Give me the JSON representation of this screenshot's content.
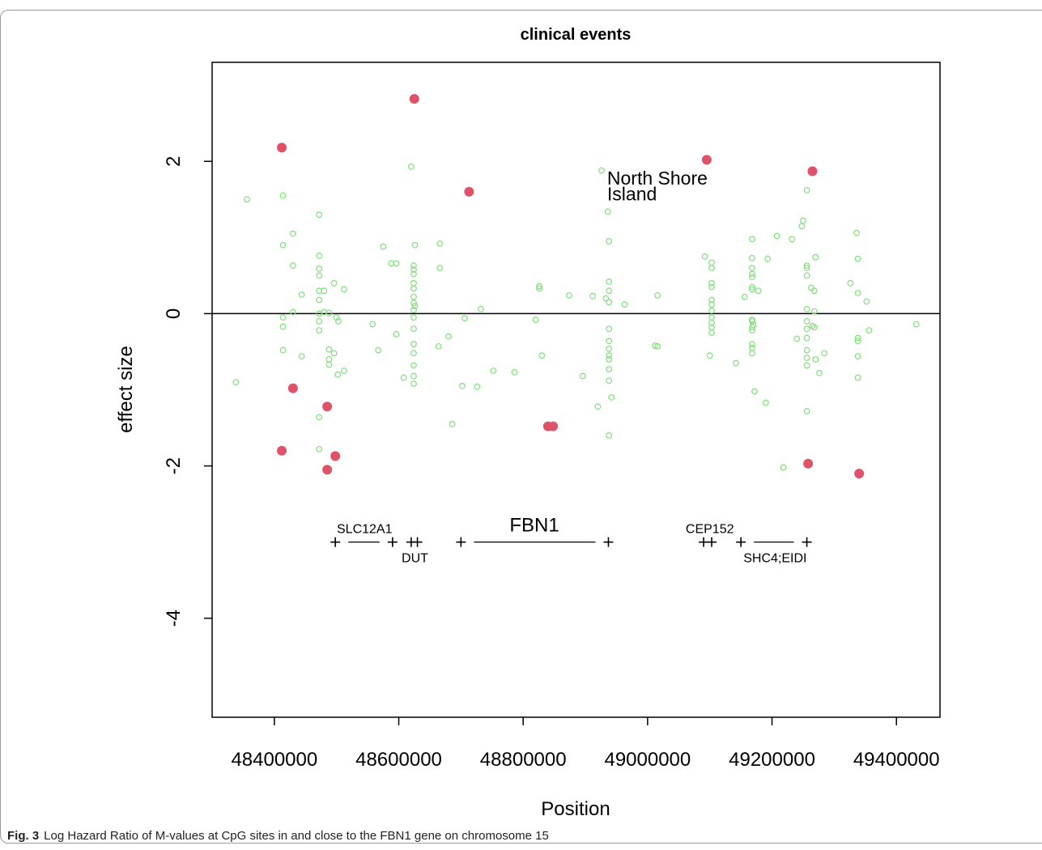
{
  "caption": {
    "label": "Fig. 3",
    "text": "Log Hazard Ratio of M-values at CpG sites in and close to the FBN1 gene on chromosome 15"
  },
  "chart_data": {
    "type": "scatter",
    "title": "clinical events",
    "xlabel": "Position",
    "ylabel": "effect size",
    "xlim": [
      48300000,
      49470000
    ],
    "ylim": [
      -5.3,
      3.3
    ],
    "xticks": [
      48400000,
      48600000,
      48800000,
      49000000,
      49200000,
      49400000
    ],
    "xtick_labels": [
      "48400000",
      "48600000",
      "48800000",
      "49000000",
      "49200000",
      "49400000"
    ],
    "yticks": [
      -4,
      -2,
      0,
      2
    ],
    "ytick_labels": [
      "-4",
      "-2",
      "0",
      "2"
    ],
    "reference_line_y": 0,
    "colors": {
      "highlight": "#df5368",
      "other": "#7fe07a",
      "axis": "#000000"
    },
    "annotations": [
      {
        "text": "North Shore",
        "x": 48935000,
        "y": 1.78
      },
      {
        "text": "Island",
        "x": 48935000,
        "y": 1.57
      }
    ],
    "genes": [
      {
        "name": "SLC12A1",
        "label_x": 48545000,
        "label_y": -2.82,
        "ticks": [
          48498000,
          48590000
        ]
      },
      {
        "name": "DUT",
        "label_x": 48626000,
        "label_y": -3.2,
        "ticks": [
          48620000,
          48630000
        ]
      },
      {
        "name": "FBN1",
        "label_x": 48818000,
        "label_y": -2.82,
        "ticks": [
          48700000,
          48937000
        ]
      },
      {
        "name": "CEP152",
        "label_x": 49100000,
        "label_y": -2.82,
        "ticks": [
          49090000,
          49103000
        ]
      },
      {
        "name": "SHC4;EIDI",
        "label_x": 49205000,
        "label_y": -3.2,
        "ticks": [
          49150000,
          49256000
        ]
      }
    ],
    "series": [
      {
        "name": "",
        "style": "filled",
        "points": [
          [
            48412000,
            2.18
          ],
          [
            48430000,
            -0.98
          ],
          [
            48412000,
            -1.8
          ],
          [
            48485000,
            -1.22
          ],
          [
            48485000,
            -2.05
          ],
          [
            48498000,
            -1.87
          ],
          [
            48625000,
            2.82
          ],
          [
            48713000,
            1.6
          ],
          [
            48840000,
            -1.48
          ],
          [
            48848000,
            -1.48
          ],
          [
            49095000,
            2.02
          ],
          [
            49265000,
            1.87
          ],
          [
            49258000,
            -1.97
          ],
          [
            49340000,
            -2.1
          ]
        ]
      },
      {
        "name": "",
        "style": "open",
        "points": [
          [
            48338000,
            -0.9
          ],
          [
            48356000,
            1.5
          ],
          [
            48414000,
            1.55
          ],
          [
            48414000,
            0.9
          ],
          [
            48414000,
            -0.05
          ],
          [
            48414000,
            -0.17
          ],
          [
            48414000,
            -0.48
          ],
          [
            48430000,
            1.05
          ],
          [
            48430000,
            0.63
          ],
          [
            48430000,
            0.02
          ],
          [
            48444000,
            0.25
          ],
          [
            48444000,
            -0.56
          ],
          [
            48472000,
            1.3
          ],
          [
            48472000,
            0.76
          ],
          [
            48472000,
            0.59
          ],
          [
            48472000,
            0.5
          ],
          [
            48472000,
            0.3
          ],
          [
            48472000,
            0.18
          ],
          [
            48472000,
            0.0
          ],
          [
            48472000,
            -0.1
          ],
          [
            48472000,
            -0.22
          ],
          [
            48472000,
            -1.36
          ],
          [
            48472000,
            -1.78
          ],
          [
            48480000,
            0.3
          ],
          [
            48480000,
            0.02
          ],
          [
            48488000,
            0.01
          ],
          [
            48488000,
            -0.47
          ],
          [
            48488000,
            -0.6
          ],
          [
            48488000,
            -0.67
          ],
          [
            48496000,
            0.4
          ],
          [
            48496000,
            -0.52
          ],
          [
            48500000,
            -0.05
          ],
          [
            48502000,
            -0.8
          ],
          [
            48503000,
            -0.1
          ],
          [
            48512000,
            0.32
          ],
          [
            48512000,
            -0.75
          ],
          [
            48558000,
            -0.14
          ],
          [
            48567000,
            -0.48
          ],
          [
            48575000,
            0.88
          ],
          [
            48588000,
            0.66
          ],
          [
            48596000,
            0.66
          ],
          [
            48596000,
            -0.27
          ],
          [
            48608000,
            -0.84
          ],
          [
            48620000,
            1.93
          ],
          [
            48624000,
            0.63
          ],
          [
            48624000,
            0.58
          ],
          [
            48624000,
            0.52
          ],
          [
            48624000,
            0.4
          ],
          [
            48624000,
            0.33
          ],
          [
            48624000,
            0.22
          ],
          [
            48624000,
            0.14
          ],
          [
            48624000,
            0.05
          ],
          [
            48624000,
            -0.05
          ],
          [
            48624000,
            -0.2
          ],
          [
            48624000,
            -0.4
          ],
          [
            48624000,
            -0.52
          ],
          [
            48624000,
            -0.68
          ],
          [
            48624000,
            -0.82
          ],
          [
            48624000,
            -0.92
          ],
          [
            48626000,
            0.9
          ],
          [
            48626000,
            0.1
          ],
          [
            48664000,
            -0.43
          ],
          [
            48666000,
            0.92
          ],
          [
            48666000,
            0.6
          ],
          [
            48680000,
            -0.3
          ],
          [
            48686000,
            -1.45
          ],
          [
            48702000,
            -0.95
          ],
          [
            48706000,
            -0.06
          ],
          [
            48726000,
            -0.96
          ],
          [
            48732000,
            0.06
          ],
          [
            48752000,
            -0.75
          ],
          [
            48786000,
            -0.77
          ],
          [
            48820000,
            -0.08
          ],
          [
            48826000,
            0.36
          ],
          [
            48826000,
            0.33
          ],
          [
            48830000,
            -0.55
          ],
          [
            48874000,
            0.24
          ],
          [
            48896000,
            -0.82
          ],
          [
            48912000,
            0.23
          ],
          [
            48920000,
            -1.22
          ],
          [
            48926000,
            1.88
          ],
          [
            48933000,
            0.2
          ],
          [
            48936000,
            1.34
          ],
          [
            48938000,
            0.95
          ],
          [
            48938000,
            0.42
          ],
          [
            48938000,
            0.3
          ],
          [
            48938000,
            0.15
          ],
          [
            48938000,
            -0.2
          ],
          [
            48938000,
            -0.36
          ],
          [
            48938000,
            -0.46
          ],
          [
            48938000,
            -0.55
          ],
          [
            48938000,
            -0.6
          ],
          [
            48938000,
            -0.73
          ],
          [
            48938000,
            -0.88
          ],
          [
            48938000,
            -1.6
          ],
          [
            48942000,
            -1.1
          ],
          [
            48963000,
            0.12
          ],
          [
            49012000,
            -0.42
          ],
          [
            49016000,
            -0.43
          ],
          [
            49016000,
            0.24
          ],
          [
            49092000,
            0.75
          ],
          [
            49100000,
            -0.55
          ],
          [
            49103000,
            0.67
          ],
          [
            49103000,
            0.6
          ],
          [
            49103000,
            0.4
          ],
          [
            49103000,
            0.35
          ],
          [
            49103000,
            0.18
          ],
          [
            49103000,
            0.12
          ],
          [
            49103000,
            0.04
          ],
          [
            49103000,
            -0.05
          ],
          [
            49103000,
            -0.12
          ],
          [
            49103000,
            -0.18
          ],
          [
            49103000,
            -0.25
          ],
          [
            49142000,
            -0.65
          ],
          [
            49156000,
            0.22
          ],
          [
            49168000,
            0.98
          ],
          [
            49168000,
            0.73
          ],
          [
            49168000,
            0.6
          ],
          [
            49168000,
            0.52
          ],
          [
            49168000,
            0.48
          ],
          [
            49168000,
            0.35
          ],
          [
            49168000,
            0.32
          ],
          [
            49168000,
            -0.08
          ],
          [
            49168000,
            -0.1
          ],
          [
            49168000,
            -0.18
          ],
          [
            49168000,
            -0.22
          ],
          [
            49168000,
            -0.4
          ],
          [
            49168000,
            -0.45
          ],
          [
            49168000,
            -0.52
          ],
          [
            49170000,
            -0.15
          ],
          [
            49172000,
            -1.02
          ],
          [
            49178000,
            0.3
          ],
          [
            49190000,
            -1.17
          ],
          [
            49193000,
            0.72
          ],
          [
            49208000,
            1.02
          ],
          [
            49218000,
            -2.02
          ],
          [
            49232000,
            0.98
          ],
          [
            49240000,
            -0.33
          ],
          [
            49248000,
            1.15
          ],
          [
            49250000,
            1.22
          ],
          [
            49256000,
            1.62
          ],
          [
            49256000,
            0.63
          ],
          [
            49256000,
            0.6
          ],
          [
            49256000,
            0.5
          ],
          [
            49256000,
            0.06
          ],
          [
            49256000,
            -0.1
          ],
          [
            49256000,
            -0.2
          ],
          [
            49256000,
            -0.32
          ],
          [
            49256000,
            -0.48
          ],
          [
            49256000,
            -0.58
          ],
          [
            49256000,
            -0.68
          ],
          [
            49256000,
            -1.28
          ],
          [
            49263000,
            0.34
          ],
          [
            49265000,
            -0.16
          ],
          [
            49268000,
            0.3
          ],
          [
            49268000,
            0.03
          ],
          [
            49268000,
            -0.18
          ],
          [
            49270000,
            0.74
          ],
          [
            49270000,
            -0.6
          ],
          [
            49276000,
            -0.78
          ],
          [
            49284000,
            -0.52
          ],
          [
            49326000,
            0.4
          ],
          [
            49336000,
            1.06
          ],
          [
            49338000,
            0.72
          ],
          [
            49338000,
            0.27
          ],
          [
            49338000,
            -0.32
          ],
          [
            49338000,
            -0.36
          ],
          [
            49338000,
            -0.56
          ],
          [
            49338000,
            -0.84
          ],
          [
            49352000,
            0.16
          ],
          [
            49356000,
            -0.22
          ],
          [
            49432000,
            -0.14
          ]
        ]
      }
    ]
  }
}
